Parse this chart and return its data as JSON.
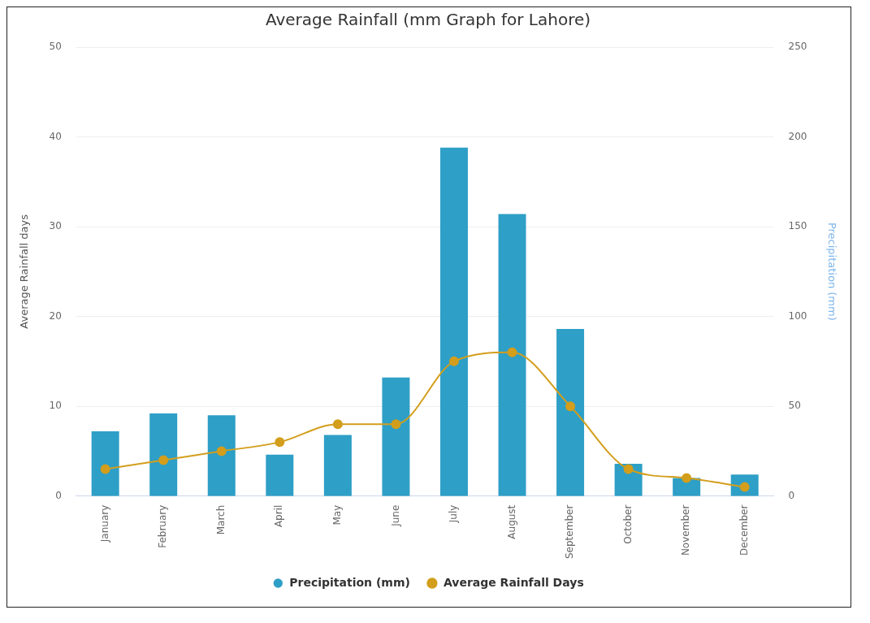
{
  "chart_data": {
    "type": "bar",
    "title": "Average Rainfall (mm Graph for Lahore)",
    "categories": [
      "January",
      "February",
      "March",
      "April",
      "May",
      "June",
      "July",
      "August",
      "September",
      "October",
      "November",
      "December"
    ],
    "series": [
      {
        "name": "Precipitation (mm)",
        "axis": "y2",
        "color": "#2e9fc6",
        "values": [
          36,
          46,
          45,
          23,
          34,
          66,
          194,
          157,
          93,
          18,
          10,
          12
        ]
      },
      {
        "name": "Average Rainfall Days",
        "type": "line",
        "color": "#d39e1c",
        "marker": "circle",
        "values": [
          3,
          4,
          5,
          6,
          8,
          8,
          15,
          16,
          10,
          3,
          2,
          1
        ]
      }
    ],
    "ylabel": "Average Rainfall days",
    "y2label": "Precipitation (mm)",
    "ylim": [
      0,
      50
    ],
    "yticks": [
      0,
      10,
      20,
      30,
      40,
      50
    ],
    "y2lim": [
      0,
      250
    ],
    "y2ticks": [
      0,
      50,
      100,
      150,
      200,
      250
    ],
    "grid": "y",
    "legend": "bottom"
  }
}
